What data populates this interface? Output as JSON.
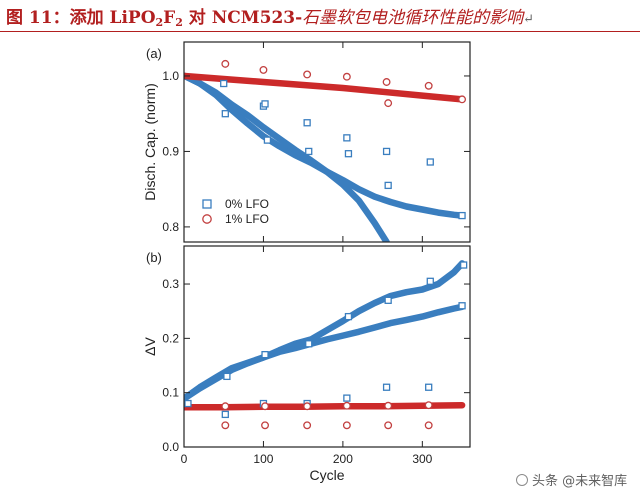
{
  "figure": {
    "title_prefix": "图 11：",
    "title_a": "添加 LiPO",
    "title_sub1": "2",
    "title_b": "F",
    "title_sub2": "2",
    "title_c": " 对 NCM523-",
    "title_d": "石墨软包电池循环性能的影响",
    "return_mark": "↵",
    "watermark": "头条 @未来智库",
    "colors": {
      "title": "#b21f1f",
      "blue": "#3a7ebf",
      "red": "#cc2a2a",
      "red_open": "#c24040"
    }
  },
  "chart_data": [
    {
      "panel": "(a)",
      "type": "scatter",
      "title": "",
      "xlabel": "",
      "ylabel": "Disch. Cap. (norm)",
      "xlim": [
        0,
        360
      ],
      "ylim": [
        0.78,
        1.045
      ],
      "xticks": [
        0,
        100,
        200,
        300
      ],
      "yticks": [
        0.8,
        0.9,
        1.0
      ],
      "ytick_labels": [
        "0.8",
        "0.9",
        "1.0"
      ],
      "legend": {
        "placement": "bottom-left",
        "entries": [
          "0% LFO",
          "1% LFO"
        ]
      },
      "series": [
        {
          "name": "0% LFO cell A",
          "style": "band",
          "color": "#3a7ebf",
          "x": [
            1,
            20,
            40,
            60,
            80,
            100,
            120,
            140,
            160,
            180,
            200,
            220,
            240,
            260,
            280,
            300,
            320,
            340,
            350
          ],
          "y": [
            1.0,
            0.99,
            0.975,
            0.955,
            0.937,
            0.92,
            0.907,
            0.895,
            0.885,
            0.873,
            0.862,
            0.85,
            0.84,
            0.833,
            0.827,
            0.823,
            0.819,
            0.816,
            0.815
          ]
        },
        {
          "name": "0% LFO cell B",
          "style": "band",
          "color": "#3a7ebf",
          "x": [
            1,
            20,
            40,
            60,
            80,
            100,
            120,
            140,
            160,
            180,
            200,
            220,
            240,
            255
          ],
          "y": [
            1.0,
            0.99,
            0.978,
            0.962,
            0.948,
            0.932,
            0.917,
            0.902,
            0.888,
            0.873,
            0.856,
            0.835,
            0.805,
            0.78
          ]
        },
        {
          "name": "1% LFO",
          "style": "band",
          "color": "#cc2a2a",
          "x": [
            1,
            50,
            100,
            150,
            200,
            250,
            300,
            350
          ],
          "y": [
            1.0,
            0.996,
            0.992,
            0.988,
            0.984,
            0.979,
            0.974,
            0.969
          ]
        },
        {
          "name": "0% LFO markers",
          "style": "square",
          "color": "#3a7ebf",
          "x": [
            50,
            52,
            100,
            102,
            105,
            155,
            157,
            205,
            207,
            255,
            257,
            310,
            350
          ],
          "y": [
            0.99,
            0.95,
            0.96,
            0.963,
            0.915,
            0.938,
            0.9,
            0.918,
            0.897,
            0.9,
            0.855,
            0.886,
            0.815
          ]
        },
        {
          "name": "1% LFO markers",
          "style": "circle",
          "color": "#c24040",
          "x": [
            52,
            100,
            155,
            205,
            255,
            257,
            308,
            350
          ],
          "y": [
            1.016,
            1.008,
            1.002,
            0.999,
            0.992,
            0.964,
            0.987,
            0.969
          ]
        }
      ]
    },
    {
      "panel": "(b)",
      "type": "scatter",
      "title": "",
      "xlabel": "Cycle",
      "ylabel": "ΔV",
      "xlim": [
        0,
        360
      ],
      "ylim": [
        0.0,
        0.37
      ],
      "xticks": [
        0,
        100,
        200,
        300
      ],
      "xtick_labels": [
        "0",
        "100",
        "200",
        "300"
      ],
      "yticks": [
        0.0,
        0.1,
        0.2,
        0.3
      ],
      "ytick_labels": [
        "0.0",
        "0.1",
        "0.2",
        "0.3"
      ],
      "series": [
        {
          "name": "0% LFO cell A",
          "style": "band",
          "color": "#3a7ebf",
          "x": [
            1,
            20,
            40,
            60,
            80,
            100,
            120,
            140,
            160,
            180,
            200,
            220,
            240,
            260,
            280,
            300,
            320,
            340,
            350
          ],
          "y": [
            0.09,
            0.11,
            0.128,
            0.145,
            0.155,
            0.165,
            0.175,
            0.182,
            0.19,
            0.198,
            0.205,
            0.212,
            0.22,
            0.228,
            0.234,
            0.24,
            0.248,
            0.255,
            0.258
          ]
        },
        {
          "name": "0% LFO cell B",
          "style": "band",
          "color": "#3a7ebf",
          "x": [
            1,
            20,
            40,
            60,
            80,
            100,
            120,
            140,
            160,
            180,
            200,
            220,
            240,
            260,
            280,
            300,
            320,
            340,
            350
          ],
          "y": [
            0.09,
            0.108,
            0.125,
            0.142,
            0.154,
            0.165,
            0.178,
            0.19,
            0.198,
            0.215,
            0.232,
            0.25,
            0.265,
            0.278,
            0.285,
            0.29,
            0.3,
            0.322,
            0.338
          ]
        },
        {
          "name": "1% LFO",
          "style": "band",
          "color": "#cc2a2a",
          "x": [
            1,
            50,
            100,
            150,
            200,
            250,
            300,
            350
          ],
          "y": [
            0.073,
            0.073,
            0.074,
            0.074,
            0.075,
            0.075,
            0.076,
            0.077
          ]
        },
        {
          "name": "0% LFO markers",
          "style": "square",
          "color": "#3a7ebf",
          "x": [
            5,
            52,
            54,
            100,
            102,
            155,
            157,
            205,
            207,
            255,
            257,
            308,
            310,
            350,
            352
          ],
          "y": [
            0.08,
            0.06,
            0.13,
            0.08,
            0.17,
            0.08,
            0.19,
            0.09,
            0.24,
            0.11,
            0.27,
            0.11,
            0.305,
            0.26,
            0.335
          ]
        },
        {
          "name": "1% LFO markers",
          "style": "circle",
          "color": "#c24040",
          "x": [
            52,
            102,
            155,
            205,
            257,
            308,
            52,
            102,
            155,
            205,
            257,
            308
          ],
          "y": [
            0.075,
            0.075,
            0.075,
            0.076,
            0.076,
            0.077,
            0.04,
            0.04,
            0.04,
            0.04,
            0.04,
            0.04
          ]
        }
      ]
    }
  ]
}
